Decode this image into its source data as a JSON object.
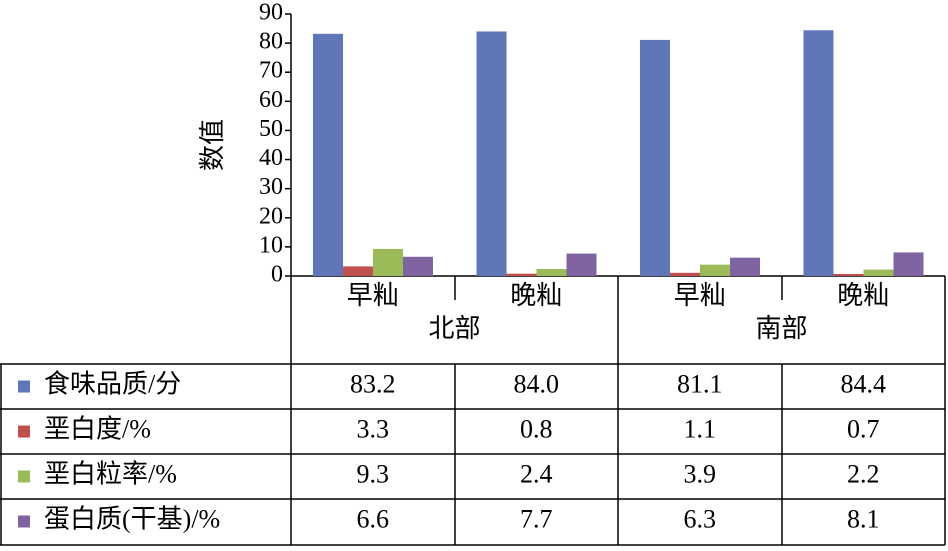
{
  "chart_data": {
    "type": "bar",
    "y_label": "数值",
    "categories": [
      "早籼",
      "晚籼",
      "早籼",
      "晚籼"
    ],
    "groups": [
      "北部",
      "南部"
    ],
    "series": [
      {
        "name": "食味品质/分",
        "color": "#5f77b9",
        "values": [
          83.2,
          84.0,
          81.1,
          84.4
        ],
        "value_labels": [
          "83.2",
          "84.0",
          "81.1",
          "84.4"
        ]
      },
      {
        "name": "垩白度/%",
        "color": "#c0504d",
        "values": [
          3.3,
          0.8,
          1.1,
          0.7
        ]
      },
      {
        "name": "垩白粒率/%",
        "color": "#9bbb59",
        "values": [
          9.3,
          2.4,
          3.9,
          2.2
        ]
      },
      {
        "name": "蛋白质(干基)/%",
        "color": "#8064a2",
        "values": [
          6.6,
          7.7,
          6.3,
          8.1
        ]
      }
    ],
    "ylim": [
      0,
      90
    ],
    "yticks": [
      0,
      10,
      20,
      30,
      40,
      50,
      60,
      70,
      80,
      90
    ],
    "grid": false
  }
}
